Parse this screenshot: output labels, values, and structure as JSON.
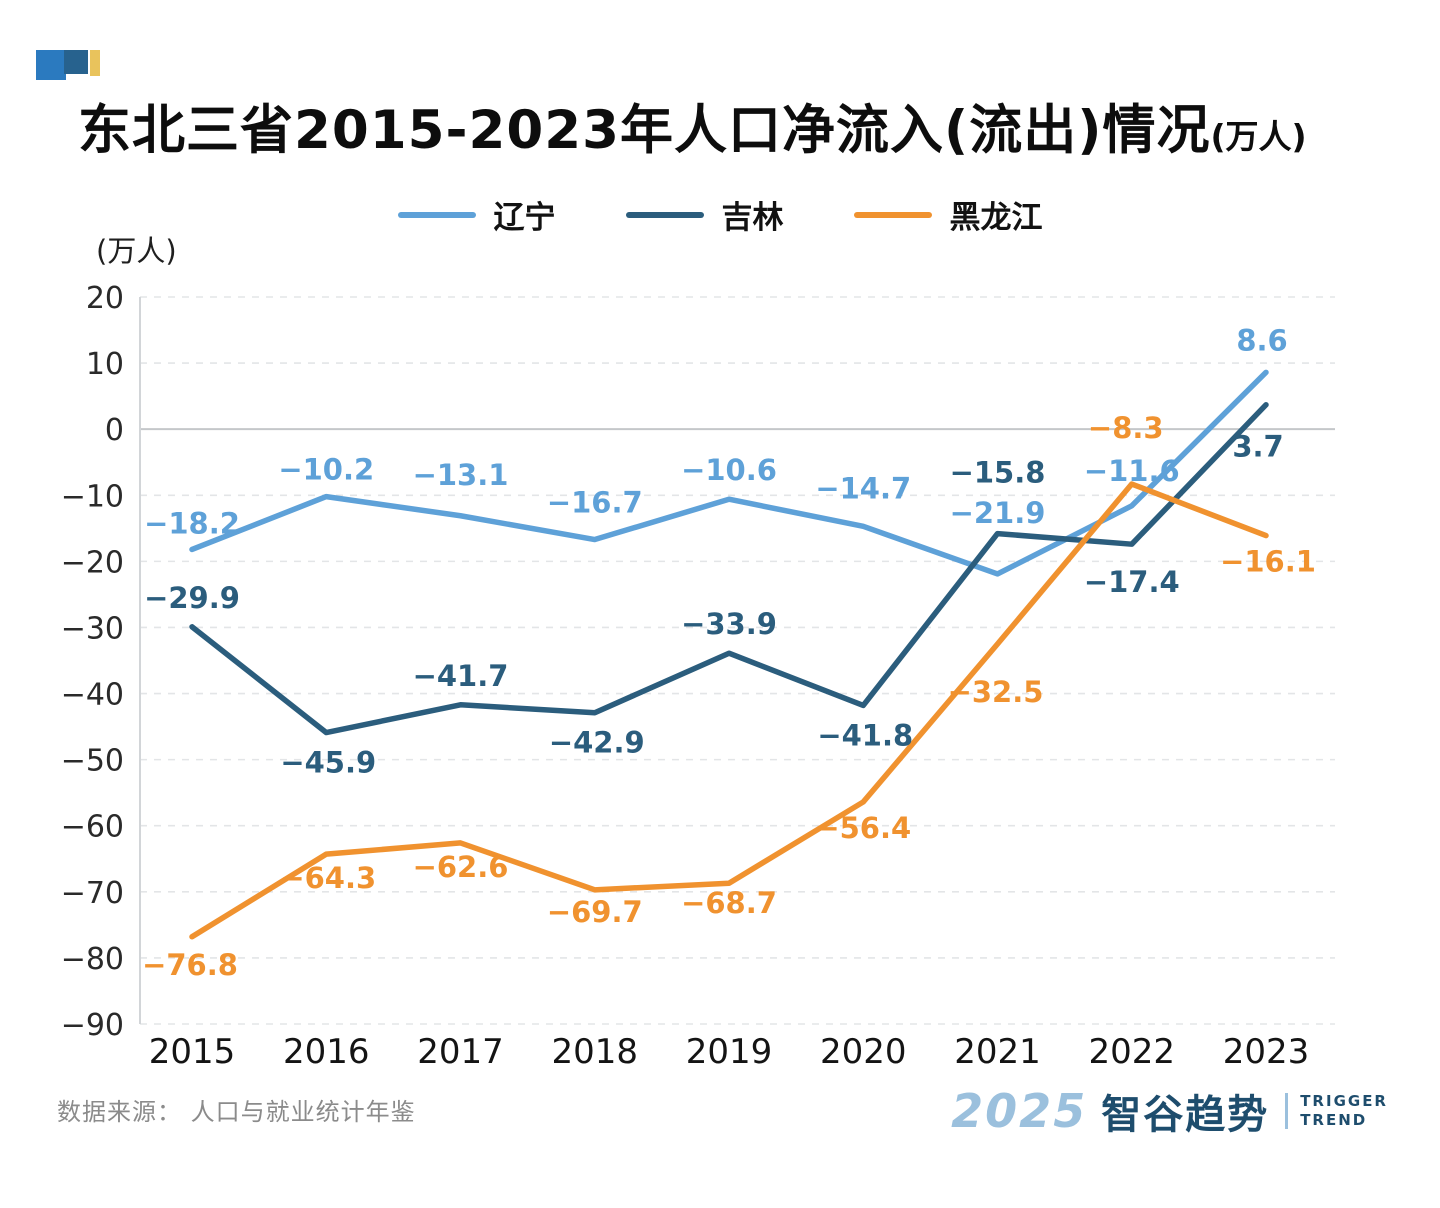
{
  "page": {
    "title_main": "东北三省2015-2023年人口净流入(流出)情况",
    "title_unit": "(万人)",
    "y_unit_label": "（万人）",
    "source": "数据来源： 人口与就业统计年鉴",
    "brand": {
      "year": "2025",
      "name": "智谷趋势",
      "tagline1": "TRIGGER",
      "tagline2": "TREND"
    }
  },
  "chart_data": {
    "type": "line",
    "title": "东北三省2015-2023年人口净流入(流出)情况(万人)",
    "x": [
      "2015",
      "2016",
      "2017",
      "2018",
      "2019",
      "2020",
      "2021",
      "2022",
      "2023"
    ],
    "series": [
      {
        "name": "辽宁",
        "color": "#5ea1d8",
        "values": [
          -18.2,
          -10.2,
          -13.1,
          -16.7,
          -10.6,
          -14.7,
          -21.9,
          -11.6,
          8.6
        ]
      },
      {
        "name": "吉林",
        "color": "#2b5d7d",
        "values": [
          -29.9,
          -45.9,
          -41.7,
          -42.9,
          -33.9,
          -41.8,
          -15.8,
          -17.4,
          3.7
        ]
      },
      {
        "name": "黑龙江",
        "color": "#f0922f",
        "values": [
          -76.8,
          -64.3,
          -62.6,
          -69.7,
          -68.7,
          -56.4,
          -32.5,
          -8.3,
          -16.1
        ]
      }
    ],
    "ylabel": "(万人)",
    "xlabel": "",
    "ylim": [
      -90,
      20
    ],
    "ytick_step": 10,
    "grid": true,
    "legend_position": "top"
  }
}
